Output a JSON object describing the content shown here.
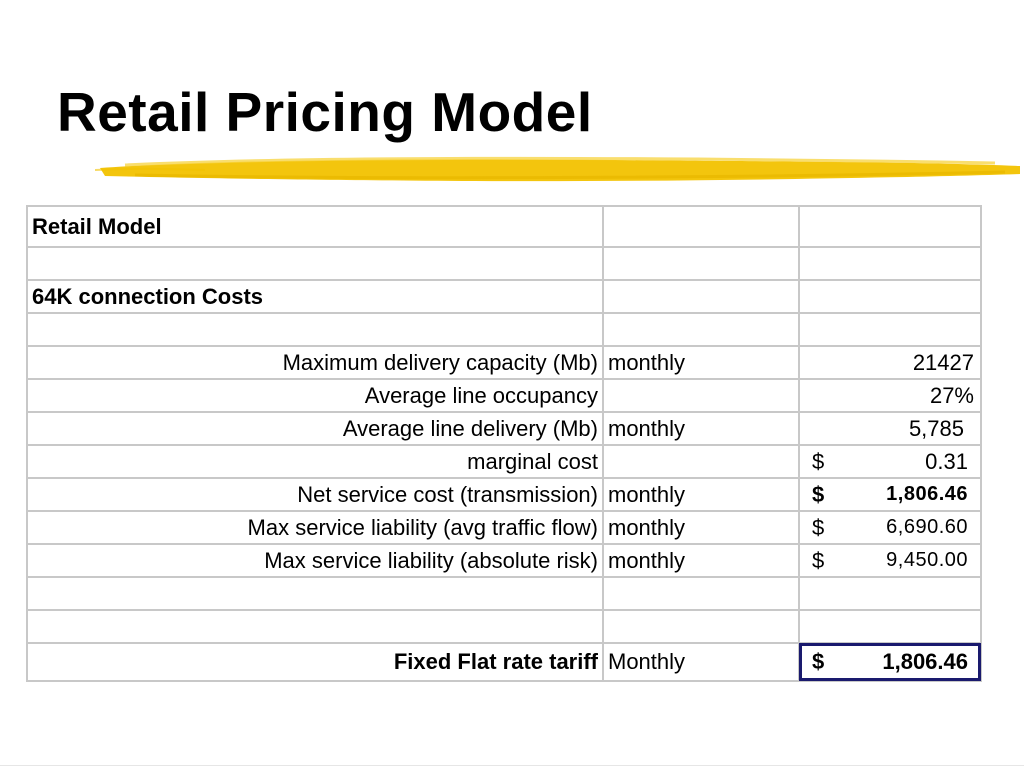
{
  "slide": {
    "title": "Retail Pricing Model"
  },
  "colors": {
    "underline": "#f2c200",
    "grid": "#c8c8c8",
    "highlight_border": "#1a1a6e"
  },
  "table": {
    "title": "Retail Model",
    "section": "64K connection Costs",
    "rows": [
      {
        "label": "Maximum delivery capacity (Mb)",
        "period": "monthly",
        "currency": "",
        "value": "21427"
      },
      {
        "label": "Average line occupancy",
        "period": "",
        "currency": "",
        "value": "27%"
      },
      {
        "label": "Average line delivery (Mb)",
        "period": "monthly",
        "currency": "",
        "value": "5,785"
      },
      {
        "label": "marginal cost",
        "period": "",
        "currency": "$",
        "value": "0.31"
      },
      {
        "label": "Net service cost (transmission)",
        "period": "monthly",
        "currency": "$",
        "value": "1,806.46"
      },
      {
        "label": "Max service liability (avg traffic flow)",
        "period": "monthly",
        "currency": "$",
        "value": "6,690.60"
      },
      {
        "label": "Max service liability (absolute risk)",
        "period": "monthly",
        "currency": "$",
        "value": "9,450.00"
      }
    ],
    "final": {
      "label": "Fixed Flat rate tariff",
      "period": "Monthly",
      "currency": "$",
      "value": "1,806.46"
    }
  }
}
